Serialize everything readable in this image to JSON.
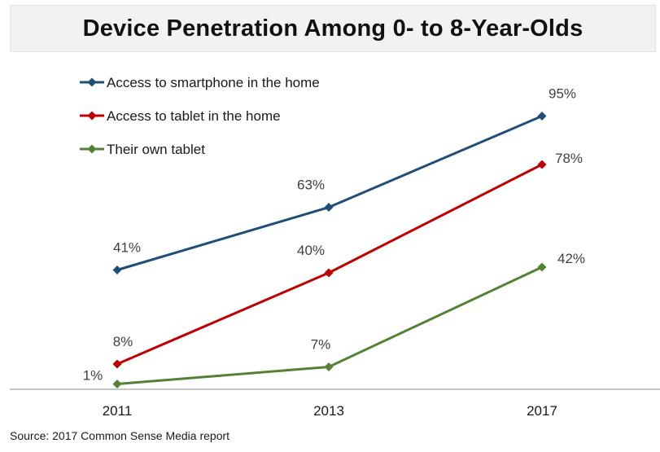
{
  "chart_data": {
    "type": "line",
    "title": "Device Penetration Among 0- to 8-Year-Olds",
    "categories": [
      "2011",
      "2013",
      "2017"
    ],
    "series": [
      {
        "name": "Access to smartphone in the home",
        "values": [
          41,
          63,
          95
        ],
        "labels": [
          "41%",
          "63%",
          "95%"
        ],
        "color": "#1f4e79"
      },
      {
        "name": "Access to tablet in the home",
        "values": [
          8,
          40,
          78
        ],
        "labels": [
          "8%",
          "40%",
          "78%"
        ],
        "color": "#c00000"
      },
      {
        "name": "Their own tablet",
        "values": [
          1,
          7,
          42
        ],
        "labels": [
          "1%",
          "7%",
          "42%"
        ],
        "color": "#548235"
      }
    ],
    "ylim": [
      0,
      100
    ],
    "grid": false,
    "legend_position": "top-left"
  },
  "source": "Source: 2017 Common Sense Media report"
}
